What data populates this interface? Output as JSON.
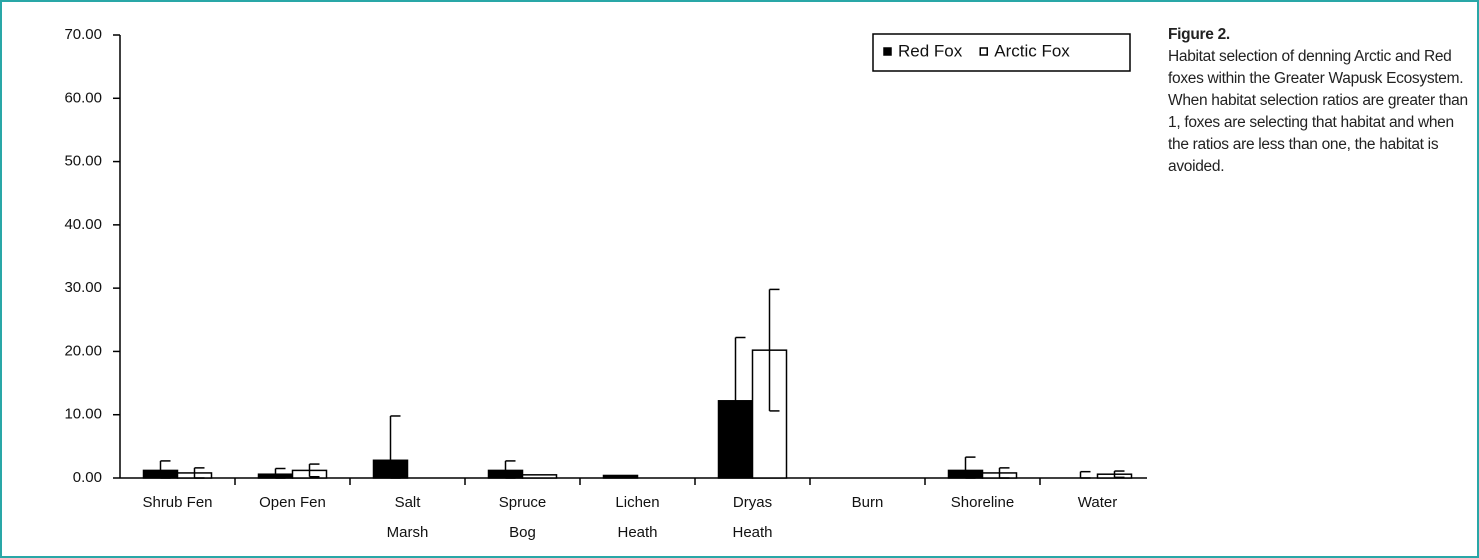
{
  "chart_data": {
    "type": "bar",
    "categories": [
      [
        "Shrub Fen"
      ],
      [
        "Open Fen"
      ],
      [
        "Salt",
        "Marsh"
      ],
      [
        "Spruce",
        "Bog"
      ],
      [
        "Lichen",
        "Heath"
      ],
      [
        "Dryas",
        "Heath"
      ],
      [
        "Burn"
      ],
      [
        "Shoreline"
      ],
      [
        "Water"
      ]
    ],
    "series": [
      {
        "name": "Red Fox",
        "color": "#000000",
        "values": [
          1.2,
          0.6,
          2.8,
          1.2,
          0.4,
          12.2,
          0,
          1.2,
          0
        ],
        "errors": [
          1.5,
          0.9,
          7.0,
          1.5,
          0,
          10.0,
          0,
          2.1,
          1.0
        ]
      },
      {
        "name": "Arctic Fox",
        "color": "#ffffff",
        "values": [
          0.8,
          1.2,
          0,
          0.5,
          0,
          20.2,
          0,
          0.8,
          0.6
        ],
        "errors": [
          0.8,
          1.0,
          0,
          0,
          0,
          9.6,
          0,
          0.8,
          0.5
        ]
      }
    ],
    "ylim": [
      0,
      70
    ],
    "yticks": [
      {
        "value": 0,
        "label": "0.00"
      },
      {
        "value": 10,
        "label": "10.00"
      },
      {
        "value": 20,
        "label": "20.00"
      },
      {
        "value": 30,
        "label": "30.00"
      },
      {
        "value": 40,
        "label": "40.00"
      },
      {
        "value": 50,
        "label": "50.00"
      },
      {
        "value": 60,
        "label": "60.00"
      },
      {
        "value": 70,
        "label": "70.00"
      }
    ],
    "legend": "top-right",
    "caption": {
      "title": "Figure 2.",
      "text": "Habitat selection of denning Arctic and Red foxes within the Greater Wapusk Ecosystem. When habitat selection ratios are greater than 1, foxes are selecting that habitat and when the ratios are less than one, the habitat is avoided."
    }
  }
}
